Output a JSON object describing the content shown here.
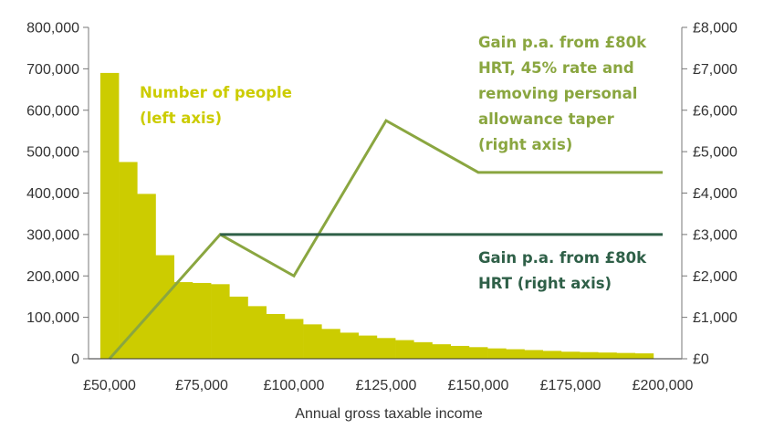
{
  "chart_data": {
    "type": "bar",
    "xlabel": "Annual gross taxable income",
    "xlim": [
      50000,
      200000
    ],
    "x_ticks": [
      "£50,000",
      "£75,000",
      "£100,000",
      "£125,000",
      "£150,000",
      "£175,000",
      "£200,000"
    ],
    "ylim_left": [
      0,
      800000
    ],
    "y_ticks_left": [
      "0",
      "100,000",
      "200,000",
      "300,000",
      "400,000",
      "500,000",
      "600,000",
      "700,000",
      "800,000"
    ],
    "ylim_right": [
      0,
      8000
    ],
    "y_ticks_right": [
      "£0",
      "£1,000",
      "£2,000",
      "£3,000",
      "£4,000",
      "£5,000",
      "£6,000",
      "£7,000",
      "£8,000"
    ],
    "bars": {
      "label": "Number of people\n(left axis)",
      "color": "#cccc00",
      "bin_width": 5000,
      "bin_starts": [
        47500,
        52500,
        57500,
        62500,
        67500,
        72500,
        77500,
        82500,
        87500,
        92500,
        97500,
        102500,
        107500,
        112500,
        117500,
        122500,
        127500,
        132500,
        137500,
        142500,
        147500,
        152500,
        157500,
        162500,
        167500,
        172500,
        177500,
        182500,
        187500,
        192500
      ],
      "values": [
        690000,
        475000,
        398000,
        250000,
        185000,
        183000,
        180000,
        150000,
        127000,
        108000,
        96000,
        83000,
        72000,
        63000,
        56000,
        50000,
        45000,
        40000,
        35000,
        31000,
        28000,
        25000,
        23000,
        21000,
        19000,
        17000,
        16000,
        15000,
        14000,
        13000
      ]
    },
    "series": [
      {
        "name": "Gain p.a. from £80k HRT, 45% rate and removing personal allowance taper (right axis)",
        "label_lines": [
          "Gain p.a. from £80k",
          "HRT, 45% rate and",
          "removing personal",
          "allowance taper",
          "(right axis)"
        ],
        "color": "#8aa640",
        "x": [
          50000,
          80000,
          100000,
          125000,
          150000,
          200000
        ],
        "y": [
          0,
          3000,
          2000,
          5750,
          4500,
          4500
        ]
      },
      {
        "name": "Gain p.a. from £80k HRT (right axis)",
        "label_lines": [
          "Gain p.a. from £80k",
          "HRT (right axis)"
        ],
        "color": "#2f6048",
        "x": [
          80000,
          200000
        ],
        "y": [
          3000,
          3000
        ]
      }
    ],
    "bar_label_lines": [
      "Number of people",
      "(left axis)"
    ],
    "grid": false
  }
}
